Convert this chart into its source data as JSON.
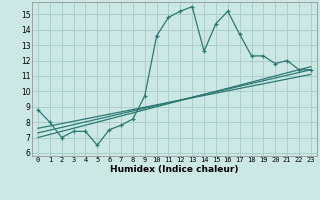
{
  "title": "",
  "xlabel": "Humidex (Indice chaleur)",
  "background_color": "#cce8e5",
  "grid_color": "#aacfcc",
  "line_color": "#2a7a72",
  "xlim": [
    -0.5,
    23.5
  ],
  "ylim": [
    5.8,
    15.8
  ],
  "yticks": [
    6,
    7,
    8,
    9,
    10,
    11,
    12,
    13,
    14,
    15
  ],
  "xticks": [
    0,
    1,
    2,
    3,
    4,
    5,
    6,
    7,
    8,
    9,
    10,
    11,
    12,
    13,
    14,
    15,
    16,
    17,
    18,
    19,
    20,
    21,
    22,
    23
  ],
  "series1_x": [
    0,
    1,
    2,
    3,
    4,
    5,
    6,
    7,
    8,
    9,
    10,
    11,
    12,
    13,
    14,
    15,
    16,
    17,
    18,
    19,
    20,
    21,
    22,
    23
  ],
  "series1_y": [
    8.8,
    8.0,
    7.0,
    7.4,
    7.4,
    6.5,
    7.5,
    7.8,
    8.2,
    9.7,
    13.6,
    14.8,
    15.2,
    15.5,
    12.6,
    14.4,
    15.2,
    13.7,
    12.3,
    12.3,
    11.8,
    12.0,
    11.4,
    11.4
  ],
  "line1_x": [
    0,
    23
  ],
  "line1_y": [
    7.6,
    11.1
  ],
  "line2_x": [
    0,
    23
  ],
  "line2_y": [
    7.3,
    11.4
  ],
  "line3_x": [
    0,
    23
  ],
  "line3_y": [
    7.0,
    11.6
  ],
  "tick_fontsize": 5,
  "xlabel_fontsize": 6.5
}
